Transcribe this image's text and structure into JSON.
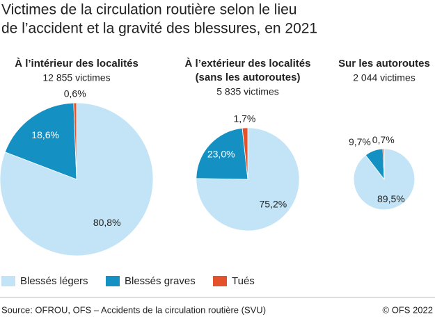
{
  "title": [
    "Victimes de la circulation routière selon le lieu",
    "de l’accident et la gravité des blessures, en 2021"
  ],
  "chart_data": [
    {
      "type": "pie",
      "title": [
        "À l’intérieur des localités"
      ],
      "total": {
        "value": 12855,
        "label": "12 855 victimes"
      },
      "values": [
        80.8,
        18.6,
        0.6
      ],
      "value_labels": [
        "80,8%",
        "18,6%",
        "0,6%"
      ]
    },
    {
      "type": "pie",
      "title": [
        "À l’extérieur des localités",
        "(sans les autoroutes)"
      ],
      "total": {
        "value": 5835,
        "label": "5 835 victimes"
      },
      "values": [
        75.2,
        23.0,
        1.7
      ],
      "value_labels": [
        "75,2%",
        "23,0%",
        "1,7%"
      ]
    },
    {
      "type": "pie",
      "title": [
        "Sur les autoroutes"
      ],
      "total": {
        "value": 2044,
        "label": "2 044 victimes"
      },
      "values": [
        89.5,
        9.7,
        0.7
      ],
      "value_labels": [
        "89,5%",
        "9,7%",
        "0,7%"
      ]
    }
  ],
  "legend": [
    {
      "name": "Blessés légers",
      "color": "#c2e4f6"
    },
    {
      "name": "Blessés graves",
      "color": "#1490c2"
    },
    {
      "name": "Tués",
      "color": "#e4522b"
    }
  ],
  "source": "Source: OFROU, OFS – Accidents de la circulation routière (SVU)",
  "copyright": "© OFS 2022"
}
